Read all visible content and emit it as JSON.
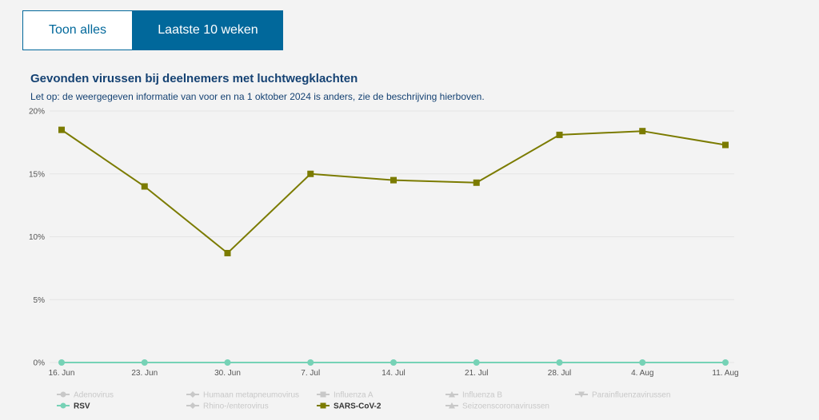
{
  "tabs": [
    {
      "label": "Toon alles",
      "active": false
    },
    {
      "label": "Laatste 10 weken",
      "active": true
    }
  ],
  "colors": {
    "primary": "#01689b",
    "title": "#154273",
    "sars": "#7b7b00",
    "rsv": "#76d2b6",
    "disabled": "#c8c8c8",
    "grid": "#e4e4e4"
  },
  "chart_data": {
    "type": "line",
    "title": "Gevonden virussen bij deelnemers met luchtwegklachten",
    "subtitle": "Let op: de weergegeven informatie van voor en na 1 oktober 2024 is anders, zie de beschrijving hierboven.",
    "categories": [
      "16. Jun",
      "23. Jun",
      "30. Jun",
      "7. Jul",
      "14. Jul",
      "21. Jul",
      "28. Jul",
      "4. Aug",
      "11. Aug"
    ],
    "yticks": [
      "0%",
      "5%",
      "10%",
      "15%",
      "20%"
    ],
    "ylim": [
      0,
      20
    ],
    "grid": true,
    "legend_position": "bottom",
    "series": [
      {
        "name": "SARS-CoV-2",
        "values": [
          18.5,
          14.0,
          8.7,
          15.0,
          14.5,
          14.3,
          18.1,
          18.4,
          17.3
        ],
        "marker": "square",
        "color": "#7b7b00"
      },
      {
        "name": "RSV",
        "values": [
          0,
          0,
          0,
          0,
          0,
          0,
          0,
          0,
          0
        ],
        "marker": "circle",
        "color": "#76d2b6"
      }
    ],
    "legend": [
      {
        "label": "Adenovirus",
        "active": false,
        "marker": "circle"
      },
      {
        "label": "Humaan metapneumovirus",
        "active": false,
        "marker": "diamond"
      },
      {
        "label": "Influenza A",
        "active": false,
        "marker": "square"
      },
      {
        "label": "Influenza B",
        "active": false,
        "marker": "triangle"
      },
      {
        "label": "Parainfluenzavirussen",
        "active": false,
        "marker": "triangle-down"
      },
      {
        "label": "RSV",
        "active": true,
        "marker": "circle",
        "color": "#76d2b6"
      },
      {
        "label": "Rhino-/enterovirus",
        "active": false,
        "marker": "diamond"
      },
      {
        "label": "SARS-CoV-2",
        "active": true,
        "marker": "square",
        "color": "#7b7b00"
      },
      {
        "label": "Seizoenscoronavirussen",
        "active": false,
        "marker": "triangle"
      }
    ]
  }
}
